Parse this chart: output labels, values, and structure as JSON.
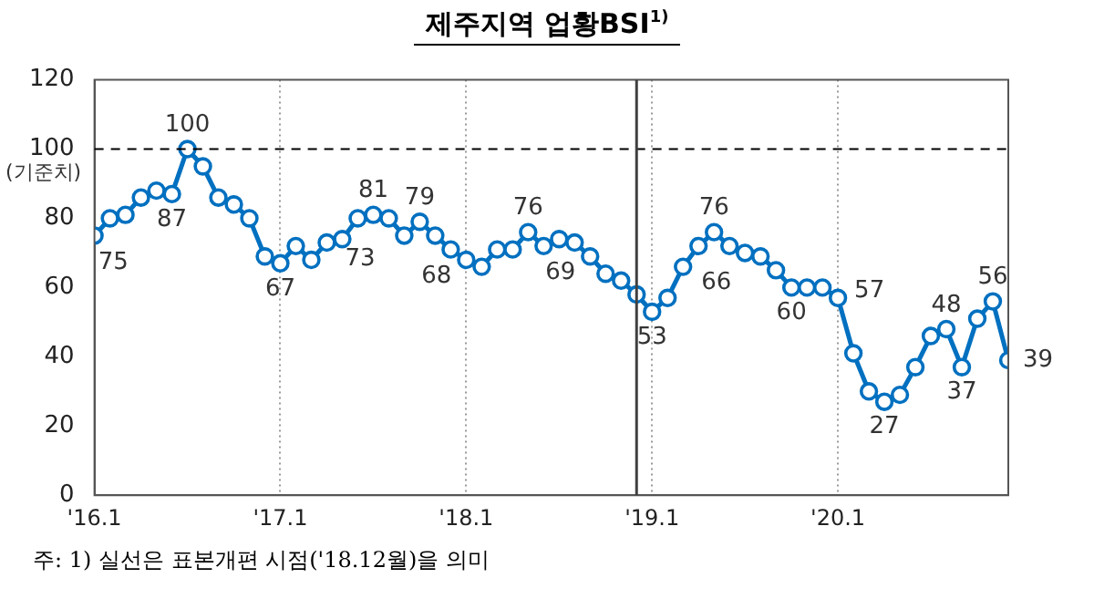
{
  "chart_data": {
    "type": "line",
    "title": "제주지역 업황BSI$^{1)}$",
    "x": [
      "2016-01",
      "2016-02",
      "2016-03",
      "2016-04",
      "2016-05",
      "2016-06",
      "2016-07",
      "2016-08",
      "2016-09",
      "2016-10",
      "2016-11",
      "2016-12",
      "2017-01",
      "2017-02",
      "2017-03",
      "2017-04",
      "2017-05",
      "2017-06",
      "2017-07",
      "2017-08",
      "2017-09",
      "2017-10",
      "2017-11",
      "2017-12",
      "2018-01",
      "2018-02",
      "2018-03",
      "2018-04",
      "2018-05",
      "2018-06",
      "2018-07",
      "2018-08",
      "2018-09",
      "2018-10",
      "2018-11",
      "2018-12",
      "2019-01",
      "2019-02",
      "2019-03",
      "2019-04",
      "2019-05",
      "2019-06",
      "2019-07",
      "2019-08",
      "2019-09",
      "2019-10",
      "2019-11",
      "2019-12",
      "2020-01",
      "2020-02",
      "2020-03",
      "2020-04",
      "2020-05",
      "2020-06",
      "2020-07",
      "2020-08",
      "2020-09",
      "2020-10",
      "2020-11",
      "2020-12"
    ],
    "series": [
      {
        "color": "#0070c0",
        "values": [
          75,
          80,
          81,
          86,
          88,
          87,
          100,
          95,
          86,
          84,
          80,
          69,
          67,
          72,
          68,
          73,
          74,
          80,
          81,
          80,
          75,
          79,
          75,
          71,
          68,
          66,
          71,
          71,
          76,
          72,
          74,
          73,
          69,
          64,
          62,
          58,
          53,
          57,
          66,
          72,
          76,
          72,
          70,
          69,
          65,
          60,
          60,
          60,
          57,
          41,
          30,
          27,
          29,
          37,
          46,
          48,
          37,
          51,
          56,
          39
        ],
        "value_labels": [
          "75",
          null,
          null,
          null,
          null,
          "87",
          "100",
          null,
          null,
          null,
          null,
          null,
          "67",
          null,
          null,
          "73",
          null,
          null,
          "81",
          null,
          null,
          "79",
          null,
          null,
          "68",
          null,
          null,
          null,
          "76",
          null,
          null,
          null,
          "69",
          null,
          null,
          null,
          "53",
          null,
          "66",
          null,
          "76",
          null,
          null,
          null,
          null,
          "60",
          null,
          null,
          "57",
          null,
          null,
          "27",
          null,
          null,
          null,
          "48",
          "37",
          null,
          "56",
          "39"
        ]
      }
    ],
    "xlim": [
      "2016-01",
      "2020-12"
    ],
    "xticks": [
      {
        "value": "2016-01",
        "label": "'16.1"
      },
      {
        "value": "2017-01",
        "label": "'17.1"
      },
      {
        "value": "2018-01",
        "label": "'18.1"
      },
      {
        "value": "2019-01",
        "label": "'19.1"
      },
      {
        "value": "2020-01",
        "label": "'20.1"
      }
    ],
    "ylim": [
      0,
      120
    ],
    "yticks": [
      0,
      20,
      40,
      60,
      80,
      100,
      120
    ],
    "ref_lines": [
      {
        "axis": "y",
        "value": 100,
        "label": "(기준치)",
        "color": "#000000",
        "line_style": "dashed"
      },
      {
        "axis": "x",
        "value": "2018-12",
        "color": "#404040",
        "line_style": "solid"
      }
    ],
    "grid": "x",
    "marker": "circle",
    "line_style": "solid",
    "legend": false,
    "annotations": [
      "주: 1) 실선은 표본개편 시점('18.12월)을 의미"
    ]
  }
}
